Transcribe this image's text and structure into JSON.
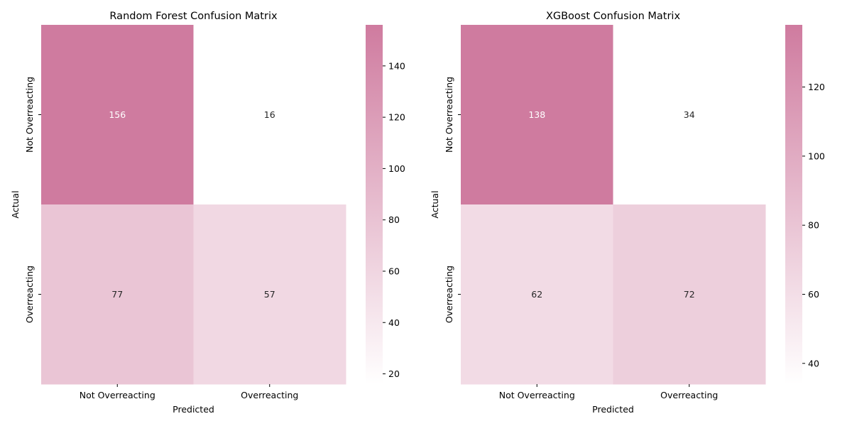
{
  "chart_data": [
    {
      "type": "heatmap",
      "title": "Random Forest Confusion Matrix",
      "xlabel": "Predicted",
      "ylabel": "Actual",
      "x_categories": [
        "Not Overreacting",
        "Overreacting"
      ],
      "y_categories": [
        "Not Overreacting",
        "Overreacting"
      ],
      "values": [
        [
          156,
          16
        ],
        [
          77,
          57
        ]
      ],
      "colorbar": {
        "min": 16,
        "max": 156,
        "ticks": [
          20,
          40,
          60,
          80,
          100,
          120,
          140
        ]
      },
      "colormap": [
        "#ffffff",
        "#cf7b9f"
      ]
    },
    {
      "type": "heatmap",
      "title": "XGBoost Confusion Matrix",
      "xlabel": "Predicted",
      "ylabel": "Actual",
      "x_categories": [
        "Not Overreacting",
        "Overreacting"
      ],
      "y_categories": [
        "Not Overreacting",
        "Overreacting"
      ],
      "values": [
        [
          138,
          34
        ],
        [
          62,
          72
        ]
      ],
      "colorbar": {
        "min": 34,
        "max": 138,
        "ticks": [
          40,
          60,
          80,
          100,
          120
        ]
      },
      "colormap": [
        "#ffffff",
        "#cf7b9f"
      ]
    }
  ]
}
